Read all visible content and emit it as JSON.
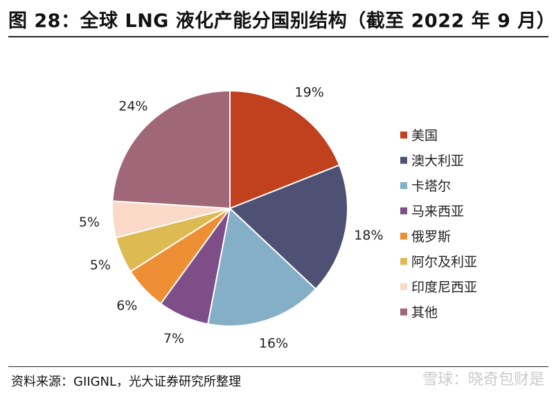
{
  "header": {
    "title": "图 28：全球 LNG 液化产能分国别结构（截至 2022 年 9 月）"
  },
  "chart_data": {
    "type": "pie",
    "title": "",
    "categories": [
      "美国",
      "澳大利亚",
      "卡塔尔",
      "马来西亚",
      "俄罗斯",
      "阿尔及利亚",
      "印度尼西亚",
      "其他"
    ],
    "values": [
      19,
      18,
      16,
      7,
      6,
      5,
      5,
      24
    ],
    "value_labels": [
      "19%",
      "18%",
      "16%",
      "7%",
      "6%",
      "5%",
      "5%",
      "24%"
    ],
    "colors": [
      "#C1401E",
      "#4E5173",
      "#85AFC7",
      "#7D4E87",
      "#EE8F35",
      "#DDBA52",
      "#FAD9C8",
      "#A06778"
    ],
    "legend_position": "right",
    "start_angle": "12 o'clock",
    "direction": "clockwise"
  },
  "footer": {
    "source": "资料来源：GIIGNL，光大证券研究所整理",
    "watermark": "雪球：晓奇包财是"
  }
}
